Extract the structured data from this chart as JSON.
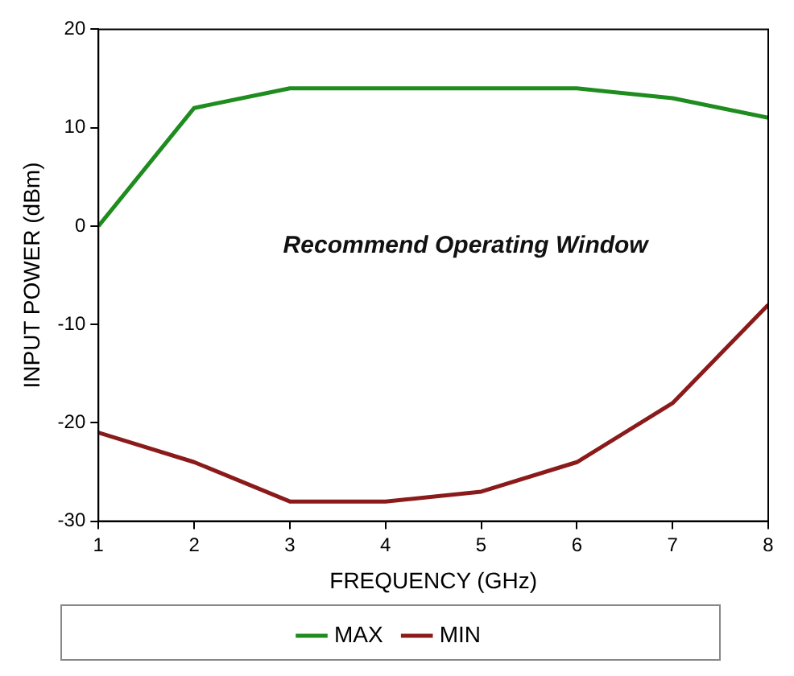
{
  "chart_data": {
    "type": "line",
    "xlabel": "FREQUENCY (GHz)",
    "ylabel": "INPUT POWER (dBm)",
    "x": [
      1,
      2,
      3,
      4,
      5,
      6,
      7,
      8
    ],
    "series": [
      {
        "name": "MAX",
        "color": "#1e8c1e",
        "values": [
          0,
          12,
          14,
          14,
          14,
          14,
          13,
          11
        ]
      },
      {
        "name": "MIN",
        "color": "#8b1a1a",
        "values": [
          -21,
          -24,
          -28,
          -28,
          -27,
          -24,
          -18,
          -8
        ]
      }
    ],
    "xlim": [
      1,
      8
    ],
    "xticks": [
      1,
      2,
      3,
      4,
      5,
      6,
      7,
      8
    ],
    "ylim": [
      -30,
      20
    ],
    "yticks": [
      -30,
      -20,
      -10,
      0,
      10,
      20
    ],
    "annotations": [
      "Recommend Operating Window"
    ],
    "legend": "bottom",
    "grid": false,
    "marker": "none",
    "line_style": "solid"
  }
}
